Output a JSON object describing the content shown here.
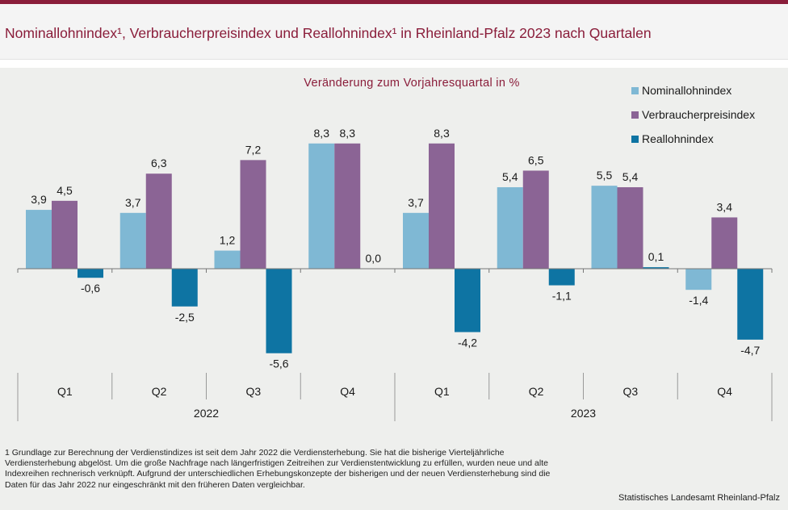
{
  "header": {
    "title": "Nominallohnindex¹, Verbraucherpreisindex und Reallohnindex¹ in Rheinland-Pfalz 2023 nach Quartalen"
  },
  "footnote": "1  Grundlage zur Berechnung der Verdienstindizes ist seit dem Jahr 2022 die Verdiensterhebung. Sie hat die bisherige Vierteljährliche Verdiensterhebung abgelöst. Um die große Nachfrage nach längerfristigen Zeitreihen zur  Verdienstentwicklung zu erfüllen, wurden neue und alte Indexreihen rechnerisch verknüpft. Aufgrund der unterschiedlichen Erhebungskonzepte der bisherigen und der neuen Verdiensterhebung sind die Daten für das Jahr 2022 nur eingeschränkt mit den früheren Daten vergleichbar.",
  "source": "Statistisches Landesamt Rheinland-Pfalz",
  "chart_data": {
    "type": "bar",
    "subtitle": "Veränderung zum Vorjahresquartal in %",
    "categories": [
      "Q1",
      "Q2",
      "Q3",
      "Q4",
      "Q1",
      "Q2",
      "Q3",
      "Q4"
    ],
    "groups": [
      {
        "label": "2022",
        "span": [
          0,
          3
        ]
      },
      {
        "label": "2023",
        "span": [
          4,
          7
        ]
      }
    ],
    "series": [
      {
        "name": "Nominallohnindex",
        "color": "#7fb8d4",
        "values": [
          3.9,
          3.7,
          1.2,
          8.3,
          3.7,
          5.4,
          5.5,
          -1.4
        ],
        "labels": [
          "3,9",
          "3,7",
          "1,2",
          "8,3",
          "3,7",
          "5,4",
          "5,5",
          "-1,4"
        ]
      },
      {
        "name": "Verbraucherpreisindex",
        "color": "#8b6495",
        "values": [
          4.5,
          6.3,
          7.2,
          8.3,
          8.3,
          6.5,
          5.4,
          3.4
        ],
        "labels": [
          "4,5",
          "6,3",
          "7,2",
          "8,3",
          "8,3",
          "6,5",
          "5,4",
          "3,4"
        ]
      },
      {
        "name": "Reallohnindex",
        "color": "#0e74a3",
        "values": [
          -0.6,
          -2.5,
          -5.6,
          0.0,
          -4.2,
          -1.1,
          0.1,
          -4.7
        ],
        "labels": [
          "-0,6",
          "-2,5",
          "-5,6",
          "0,0",
          "-4,2",
          "-1,1",
          "0,1",
          "-4,7"
        ]
      }
    ],
    "legend_position": "top-right",
    "grid": false
  }
}
